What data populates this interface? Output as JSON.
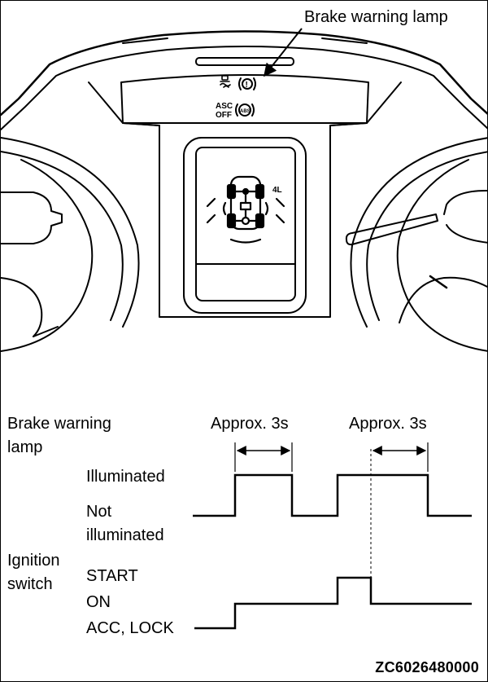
{
  "callout": {
    "label": "Brake warning lamp"
  },
  "panel_icons": {
    "asc_off_line1": "ASC",
    "asc_off_line2": "OFF",
    "abs": "ABS",
    "brake": "!",
    "four_l": "4L"
  },
  "timing_chart": {
    "lamp_label_line1": "Brake warning",
    "lamp_label_line2": "lamp",
    "illuminated": "Illuminated",
    "not_illuminated_line1": "Not",
    "not_illuminated_line2": "illuminated",
    "ignition_label_line1": "Ignition",
    "ignition_label_line2": "switch",
    "start": "START",
    "on": "ON",
    "acc_lock": "ACC, LOCK",
    "approx_1": "Approx. 3s",
    "approx_2": "Approx. 3s"
  },
  "figure_code": "ZC6026480000"
}
